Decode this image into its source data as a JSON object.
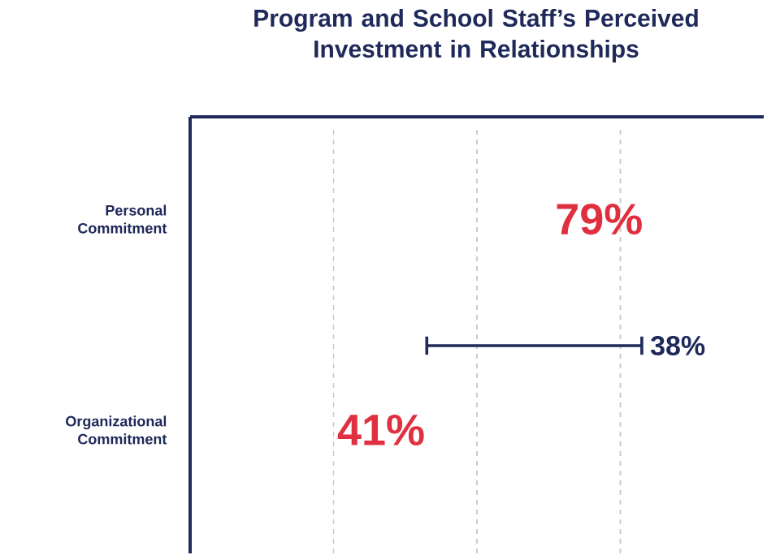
{
  "chart_data": {
    "type": "other",
    "title": "Program and School Staff’s Perceived Investment in Relationships",
    "categories": [
      "Personal Commitment",
      "Organizational Commitment"
    ],
    "values": [
      79,
      41
    ],
    "value_labels": [
      "79%",
      "41%"
    ],
    "color": "#e0303f",
    "annotations": [
      "38%"
    ]
  }
}
